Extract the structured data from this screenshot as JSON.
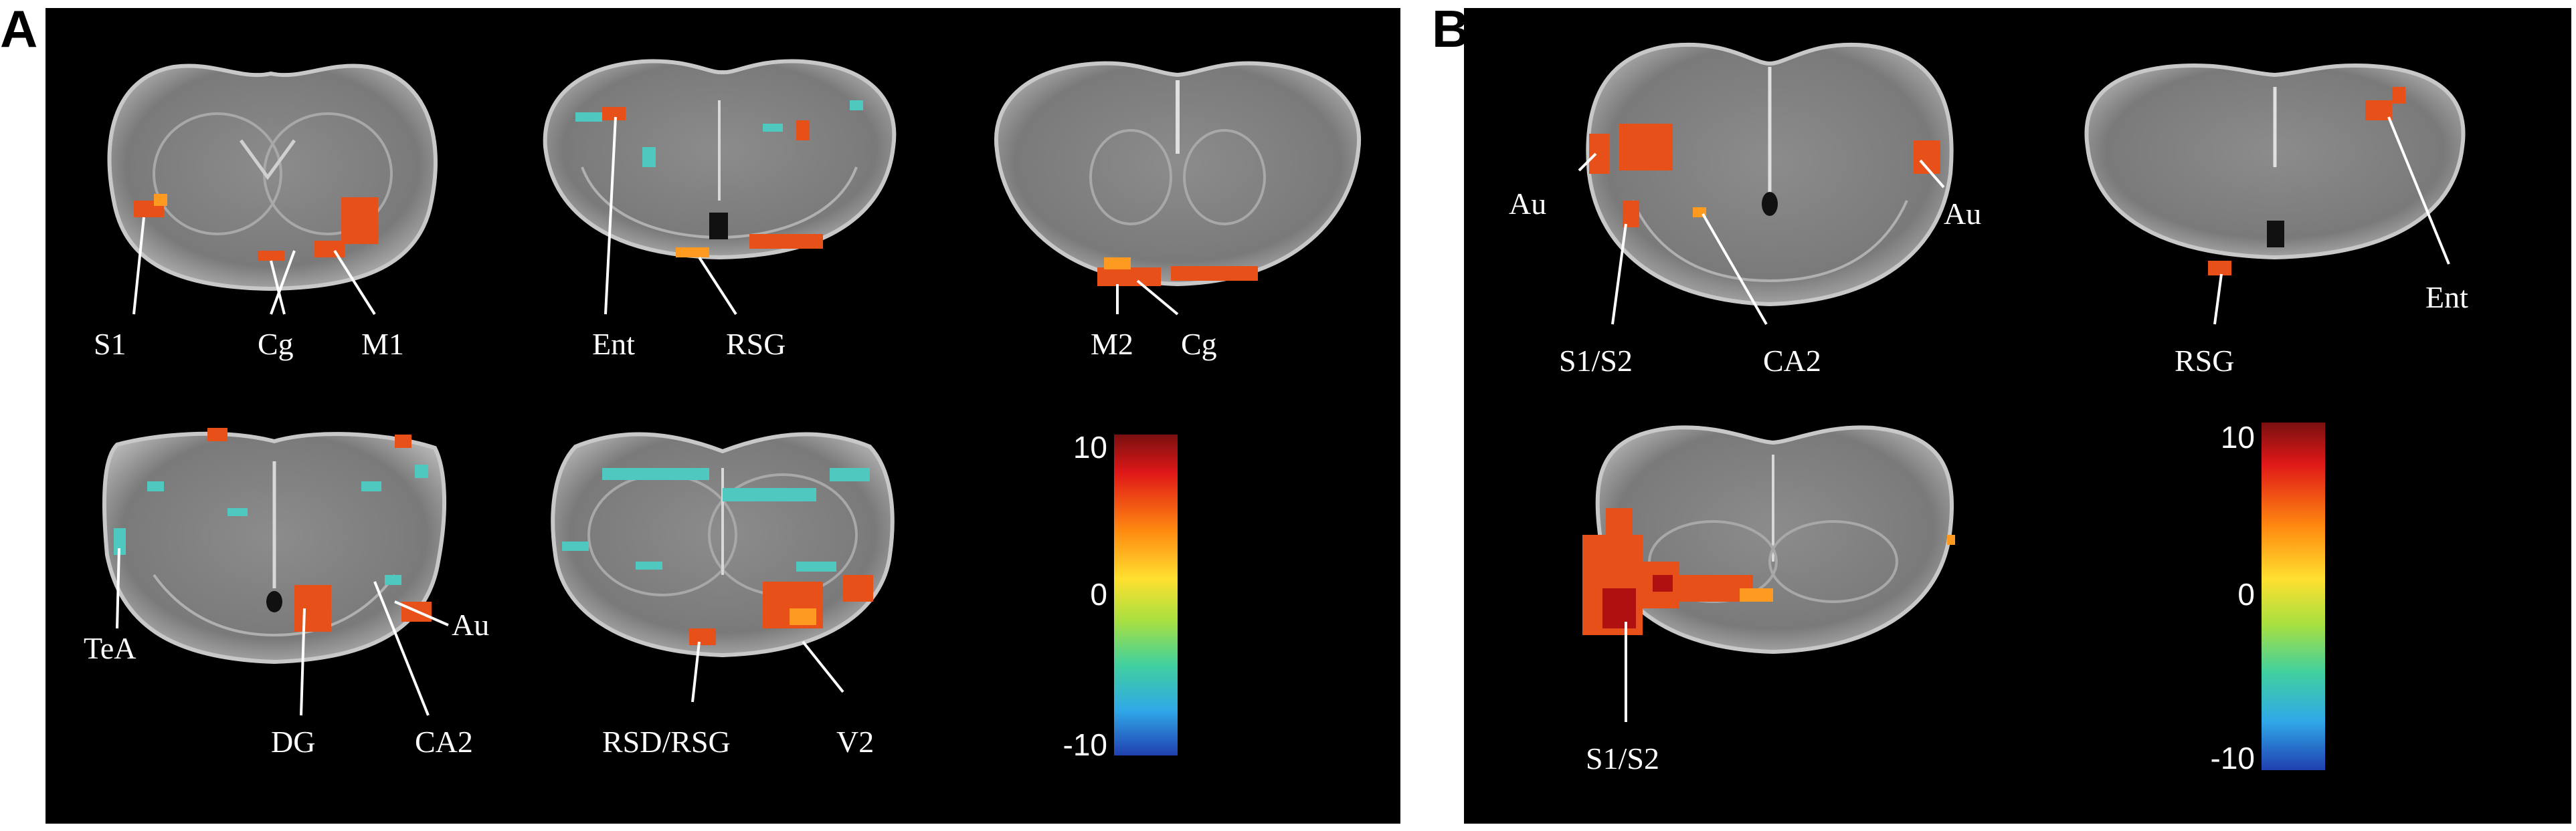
{
  "panels": [
    {
      "letter": "A",
      "structure_labels": [
        "S1",
        "Cg",
        "M1",
        "Ent",
        "RSG",
        "M2",
        "Cg",
        "TeA",
        "DG",
        "CA2",
        "Au",
        "RSD/RSG",
        "V2"
      ],
      "colorbar": {
        "max_label": "10",
        "mid_label": "0",
        "min_label": "-10"
      }
    },
    {
      "letter": "B",
      "structure_labels": [
        "Au",
        "Au",
        "S1/S2",
        "CA2",
        "RSG",
        "Ent",
        "S1/S2"
      ],
      "colorbar": {
        "max_label": "10",
        "mid_label": "0",
        "min_label": "-10"
      }
    }
  ],
  "colors": {
    "background": "#000000",
    "brain_tissue": "#9a9a9a",
    "hot_activation": "#e0401a",
    "cold_activation": "#4fc8c0"
  }
}
